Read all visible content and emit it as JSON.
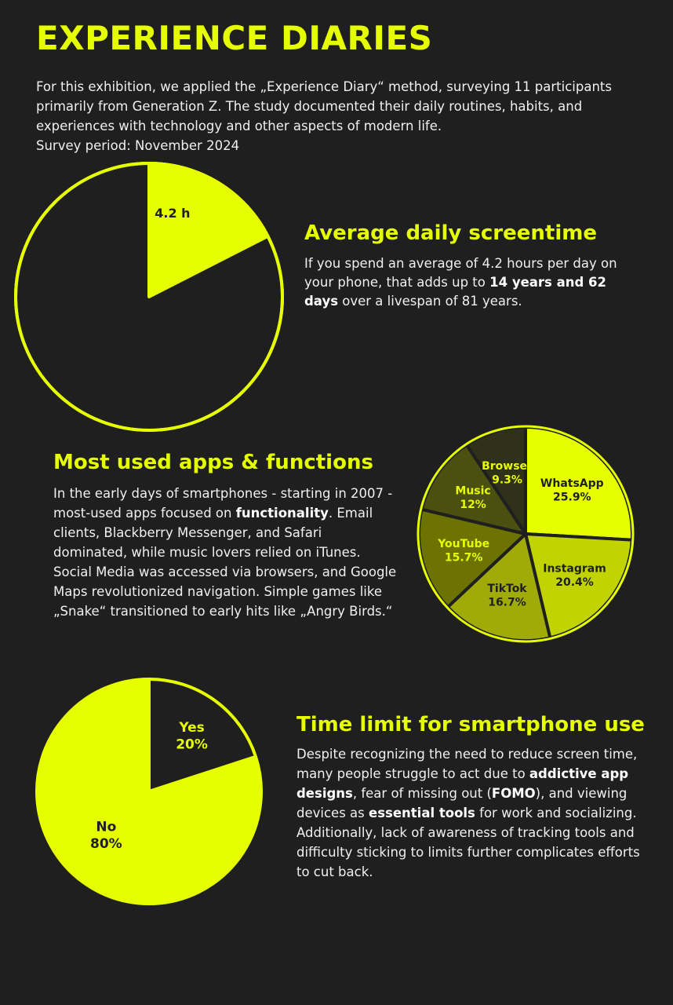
{
  "page": {
    "title": "EXPERIENCE DIARIES",
    "intro": [
      "For this exhibition, we applied the „Experience Diary“ method, surveying 11 participants",
      "primarily from Generation Z. The study documented their daily routines, habits, and",
      "experiences with technology and other aspects of modern life.",
      "Survey period: November 2024"
    ]
  },
  "sections": {
    "screentime": {
      "heading": "Average daily screentime",
      "text_1": "If you spend an average of 4.2 hours per day on your phone, that adds up to ",
      "bold_1": "14 years and 62 days",
      "text_2": " over a livespan of 81 years."
    },
    "apps": {
      "heading": "Most used apps & functions",
      "text_1": "In the early days of smartphones - starting in 2007 - most-used apps focused on ",
      "bold_1": "functionality",
      "text_2": ". Email clients, Blackberry Messenger, and Safari dominated, while music lovers relied on iTunes. Social Media was accessed via browsers, and Google Maps revolutionized navigation. Simple games like „Snake“ transitioned to early hits like „Angry Birds.“"
    },
    "timelimit": {
      "heading": "Time limit for smartphone use",
      "text_1": "Despite recognizing the need to reduce screen time, many people struggle to act due to ",
      "bold_1": "addictive app designs",
      "text_2": ", fear of missing out (",
      "bold_2": "FOMO",
      "text_3": "), and viewing devices as ",
      "bold_3": "essential tools",
      "text_4": " for work and socializing. Additionally, lack of awareness of tracking tools and difficulty sticking to limits further complicates efforts to cut back."
    }
  },
  "chart_data": [
    {
      "type": "pie",
      "title": "",
      "slices": [
        {
          "label": "4.2 h",
          "value": 4.2,
          "color": "#e6ff00"
        },
        {
          "label": "",
          "value": 19.8,
          "color": "#1f1f1f"
        }
      ]
    },
    {
      "type": "pie",
      "title": "",
      "slices": [
        {
          "label": "WhatsApp",
          "percent": "25.9%",
          "value": 25.9,
          "color": "#e6ff00"
        },
        {
          "label": "Instagram",
          "percent": "20.4%",
          "value": 20.4,
          "color": "#c2d400"
        },
        {
          "label": "TikTok",
          "percent": "16.7%",
          "value": 16.7,
          "color": "#a0ab0a"
        },
        {
          "label": "YouTube",
          "percent": "15.7%",
          "value": 15.7,
          "color": "#6c7300"
        },
        {
          "label": "Music",
          "percent": "12%",
          "value": 12,
          "color": "#4b4f10"
        },
        {
          "label": "Browser",
          "percent": "9.3%",
          "value": 9.3,
          "color": "#2f3118"
        }
      ]
    },
    {
      "type": "pie",
      "title": "",
      "slices": [
        {
          "label": "Yes",
          "percent": "20%",
          "value": 20,
          "color": "#1f1f1f"
        },
        {
          "label": "No",
          "percent": "80%",
          "value": 80,
          "color": "#e6ff00"
        }
      ]
    }
  ]
}
